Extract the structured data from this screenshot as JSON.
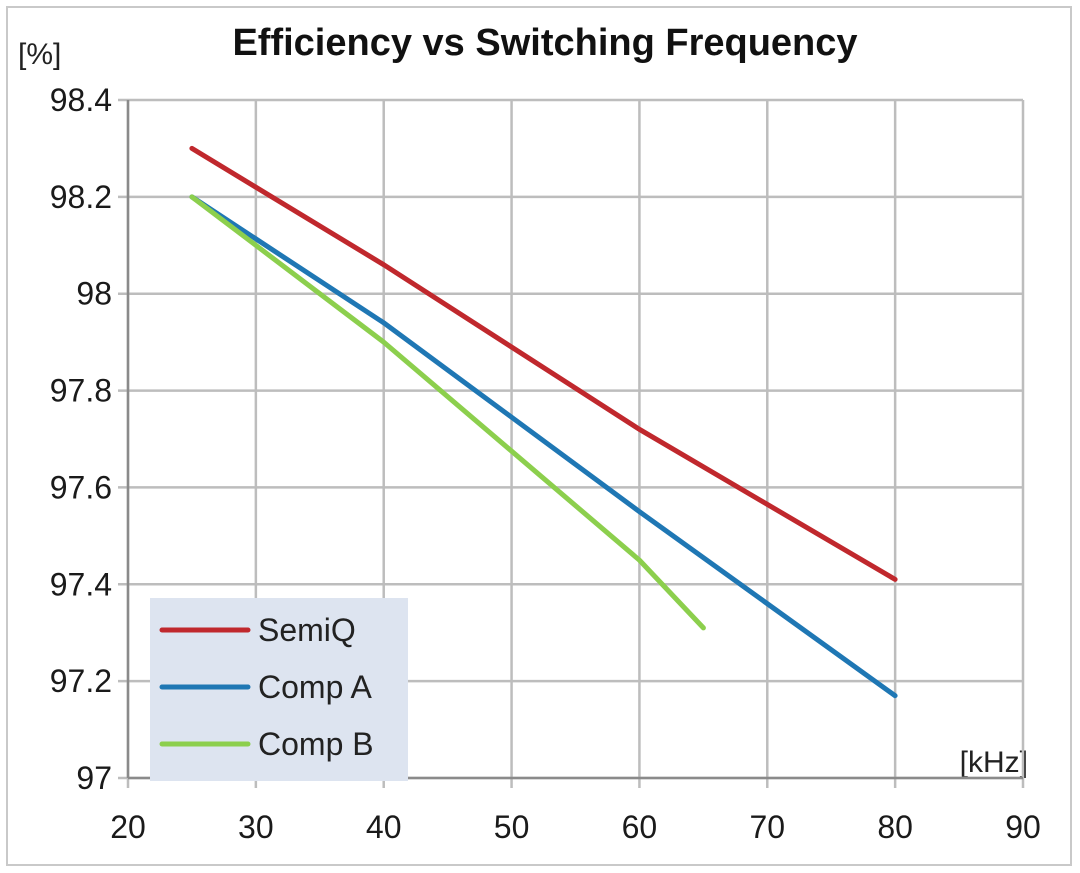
{
  "chart_data": {
    "type": "line",
    "title": "Efficiency vs Switching Frequency",
    "ylabel": "[%]",
    "xlabel": "[kHz]",
    "xlim": [
      20,
      90
    ],
    "ylim": [
      97,
      98.4
    ],
    "x_ticks": [
      20,
      30,
      40,
      50,
      60,
      70,
      80,
      90
    ],
    "y_ticks": [
      97,
      97.2,
      97.4,
      97.6,
      97.8,
      98,
      98.2,
      98.4
    ],
    "grid": true,
    "legend_position": "bottom-left",
    "series": [
      {
        "name": "SemiQ",
        "color": "#c0282d",
        "x": [
          25,
          40,
          60,
          80
        ],
        "y": [
          98.3,
          98.06,
          97.72,
          97.41
        ]
      },
      {
        "name": "Comp A",
        "color": "#1f77b4",
        "x": [
          25,
          40,
          60,
          80
        ],
        "y": [
          98.2,
          97.94,
          97.55,
          97.17
        ]
      },
      {
        "name": "Comp B",
        "color": "#8ccf4d",
        "x": [
          25,
          40,
          60,
          65
        ],
        "y": [
          98.2,
          97.9,
          97.45,
          97.31
        ]
      }
    ]
  }
}
